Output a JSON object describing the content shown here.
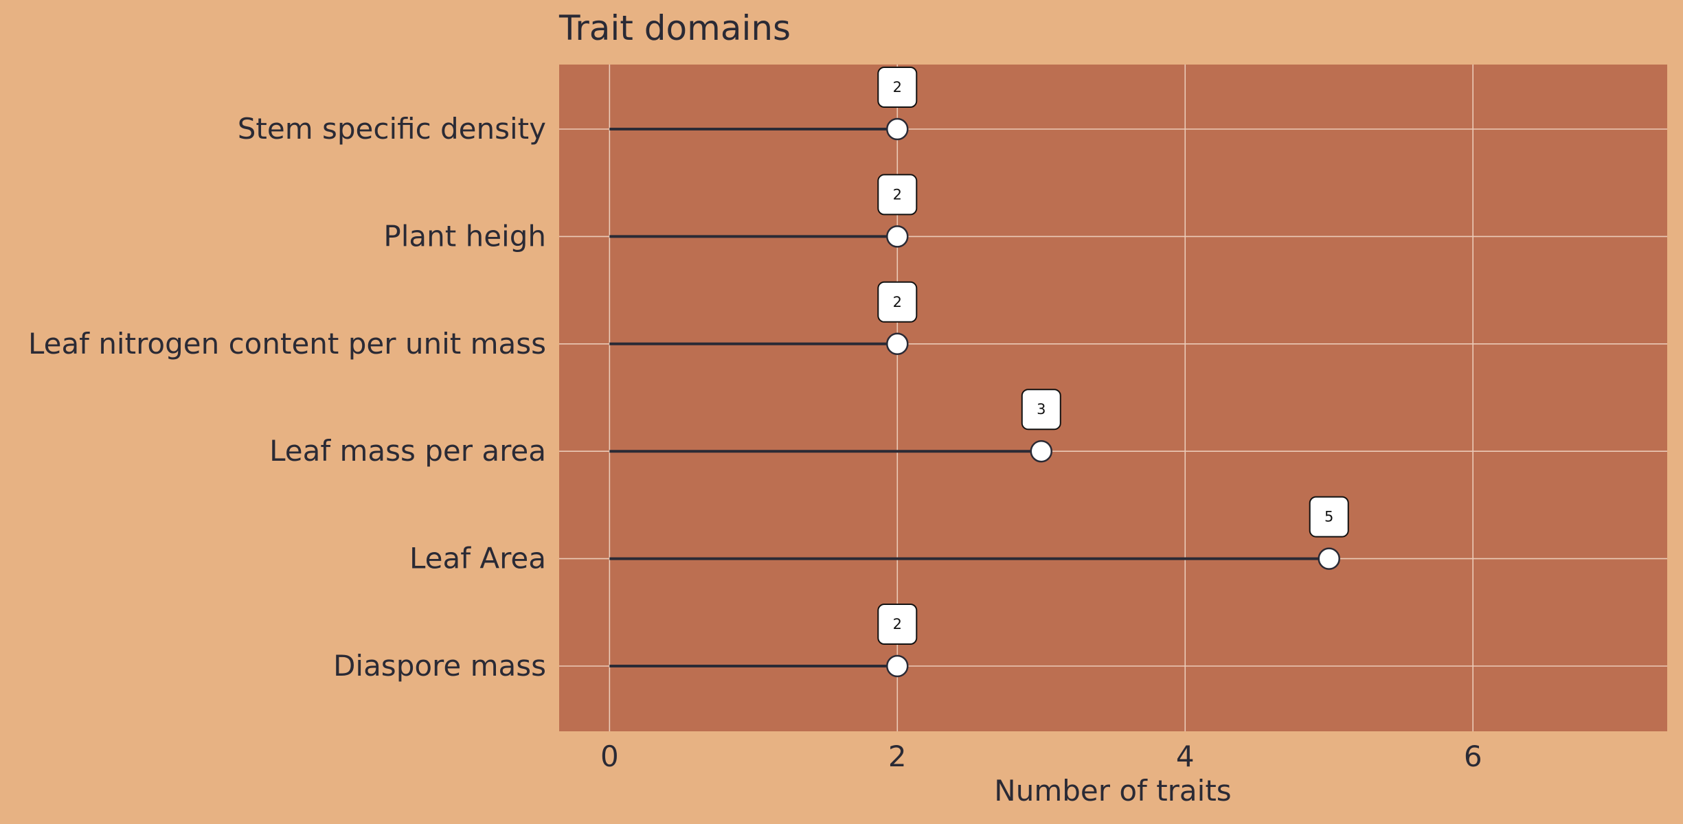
{
  "chart_data": {
    "type": "lollipop",
    "orientation": "horizontal",
    "title": "Trait domains",
    "xlabel": "Number of traits",
    "ylabel": "",
    "categories": [
      "Stem specific density",
      "Plant heigh",
      "Leaf nitrogen content per unit mass",
      "Leaf mass per area",
      "Leaf Area",
      "Diaspore mass"
    ],
    "values": [
      2,
      2,
      2,
      3,
      5,
      2
    ],
    "data_labels": [
      "2",
      "2",
      "2",
      "3",
      "5",
      "2"
    ],
    "xlim": [
      -0.35,
      7.35
    ],
    "xticks": [
      0,
      2,
      4,
      6
    ],
    "xtick_labels": [
      "0",
      "2",
      "4",
      "6"
    ],
    "grid": true,
    "legend": "none"
  },
  "colors": {
    "page_background": "#E7B283",
    "plot_background": "#BC6F51",
    "grid": "#EBCBB8",
    "stem": "#2A2A35",
    "marker_fill": "#FFFFFF",
    "marker_edge": "#2A2A35",
    "text": "#2A2A35"
  }
}
